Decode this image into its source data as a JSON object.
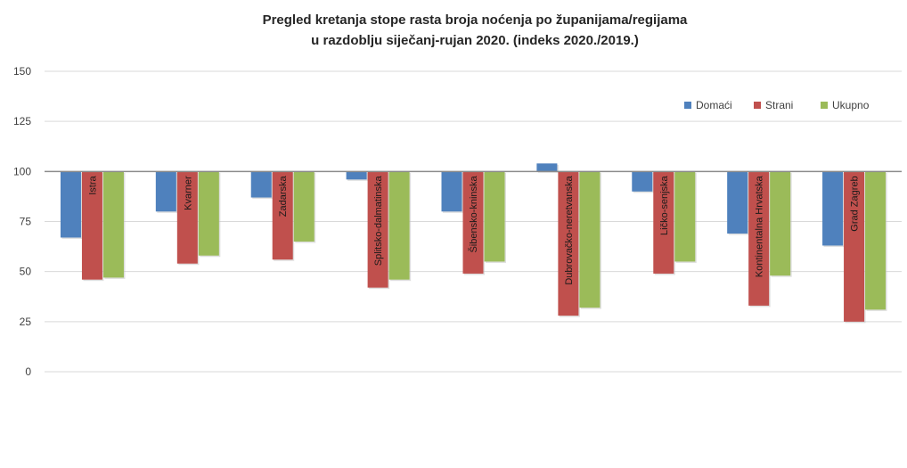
{
  "chart_data": {
    "type": "bar",
    "title": "Pregled kretanja stope rasta broja noćenja po županijama/regijama",
    "subtitle": "u razdoblju siječanj-rujan 2020. (indeks 2020./2019.)",
    "categories": [
      "Istra",
      "Kvarner",
      "Zadarska",
      "Splitsko-dalmatinska",
      "Šibensko-kninska",
      "Dubrovačko-neretvanska",
      "Ličko-senjska",
      "Kontinentalna Hrvatska",
      "Grad Zagreb"
    ],
    "series": [
      {
        "name": "Domaći",
        "color": "#4f81bd",
        "values": [
          67,
          80,
          87,
          96,
          80,
          104,
          90,
          69,
          63
        ]
      },
      {
        "name": "Strani",
        "color": "#c0504d",
        "values": [
          46,
          54,
          56,
          42,
          49,
          28,
          49,
          33,
          25
        ]
      },
      {
        "name": "Ukupno",
        "color": "#9bbb59",
        "values": [
          47,
          58,
          65,
          46,
          55,
          32,
          55,
          48,
          31
        ]
      }
    ],
    "baseline": 100,
    "ylim": [
      0,
      150
    ],
    "yticks": [
      0,
      25,
      50,
      75,
      100,
      125,
      150
    ],
    "grid": true,
    "legend_position": "top-right"
  }
}
